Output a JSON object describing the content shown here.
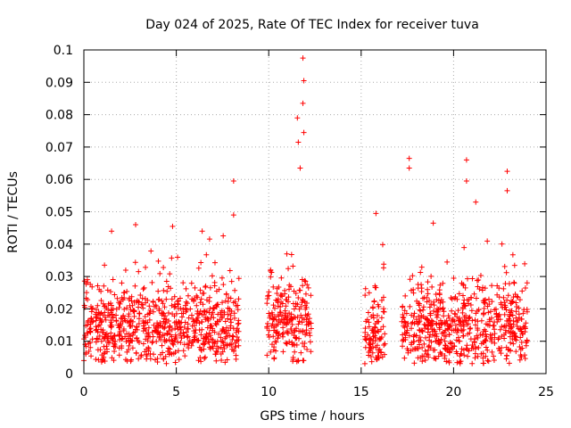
{
  "chart_data": {
    "type": "scatter",
    "title": "Day 024 of 2025, Rate Of TEC Index for receiver tuva",
    "xlabel": "GPS time / hours",
    "ylabel": "ROTI / TECUs",
    "xlim": [
      0,
      25
    ],
    "ylim": [
      0,
      0.1
    ],
    "xticks": [
      "0",
      "5",
      "10",
      "15",
      "20",
      "25"
    ],
    "yticks": [
      "0",
      "0.01",
      "0.02",
      "0.03",
      "0.04",
      "0.05",
      "0.06",
      "0.07",
      "0.08",
      "0.09",
      "0.1"
    ],
    "xtick_values": [
      0,
      5,
      10,
      15,
      20,
      25
    ],
    "ytick_values": [
      0,
      0.01,
      0.02,
      0.03,
      0.04,
      0.05,
      0.06,
      0.07,
      0.08,
      0.09,
      0.1
    ],
    "grid": true,
    "marker": "+",
    "color": "#ff0000",
    "segments": [
      {
        "x_start": 0.0,
        "x_end": 8.4,
        "baseline": 0.014
      },
      {
        "x_start": 9.9,
        "x_end": 12.3,
        "baseline": 0.015
      },
      {
        "x_start": 15.2,
        "x_end": 16.3,
        "baseline": 0.013
      },
      {
        "x_start": 17.2,
        "x_end": 24.0,
        "baseline": 0.014
      }
    ],
    "notable_points": [
      {
        "x": 8.1,
        "y": 0.0595
      },
      {
        "x": 11.85,
        "y": 0.0975
      },
      {
        "x": 11.9,
        "y": 0.0905
      },
      {
        "x": 11.85,
        "y": 0.0835
      },
      {
        "x": 11.55,
        "y": 0.079
      },
      {
        "x": 11.9,
        "y": 0.0745
      },
      {
        "x": 11.6,
        "y": 0.0715
      },
      {
        "x": 11.7,
        "y": 0.0635
      },
      {
        "x": 15.8,
        "y": 0.0495
      },
      {
        "x": 17.6,
        "y": 0.0665
      },
      {
        "x": 17.6,
        "y": 0.0635
      },
      {
        "x": 20.7,
        "y": 0.066
      },
      {
        "x": 20.7,
        "y": 0.0595
      },
      {
        "x": 22.9,
        "y": 0.0625
      },
      {
        "x": 22.9,
        "y": 0.0565
      },
      {
        "x": 2.8,
        "y": 0.046
      },
      {
        "x": 4.8,
        "y": 0.0455
      },
      {
        "x": 1.5,
        "y": 0.044
      },
      {
        "x": 6.4,
        "y": 0.044
      },
      {
        "x": 8.1,
        "y": 0.049
      },
      {
        "x": 18.9,
        "y": 0.0465
      },
      {
        "x": 21.2,
        "y": 0.053
      }
    ]
  }
}
